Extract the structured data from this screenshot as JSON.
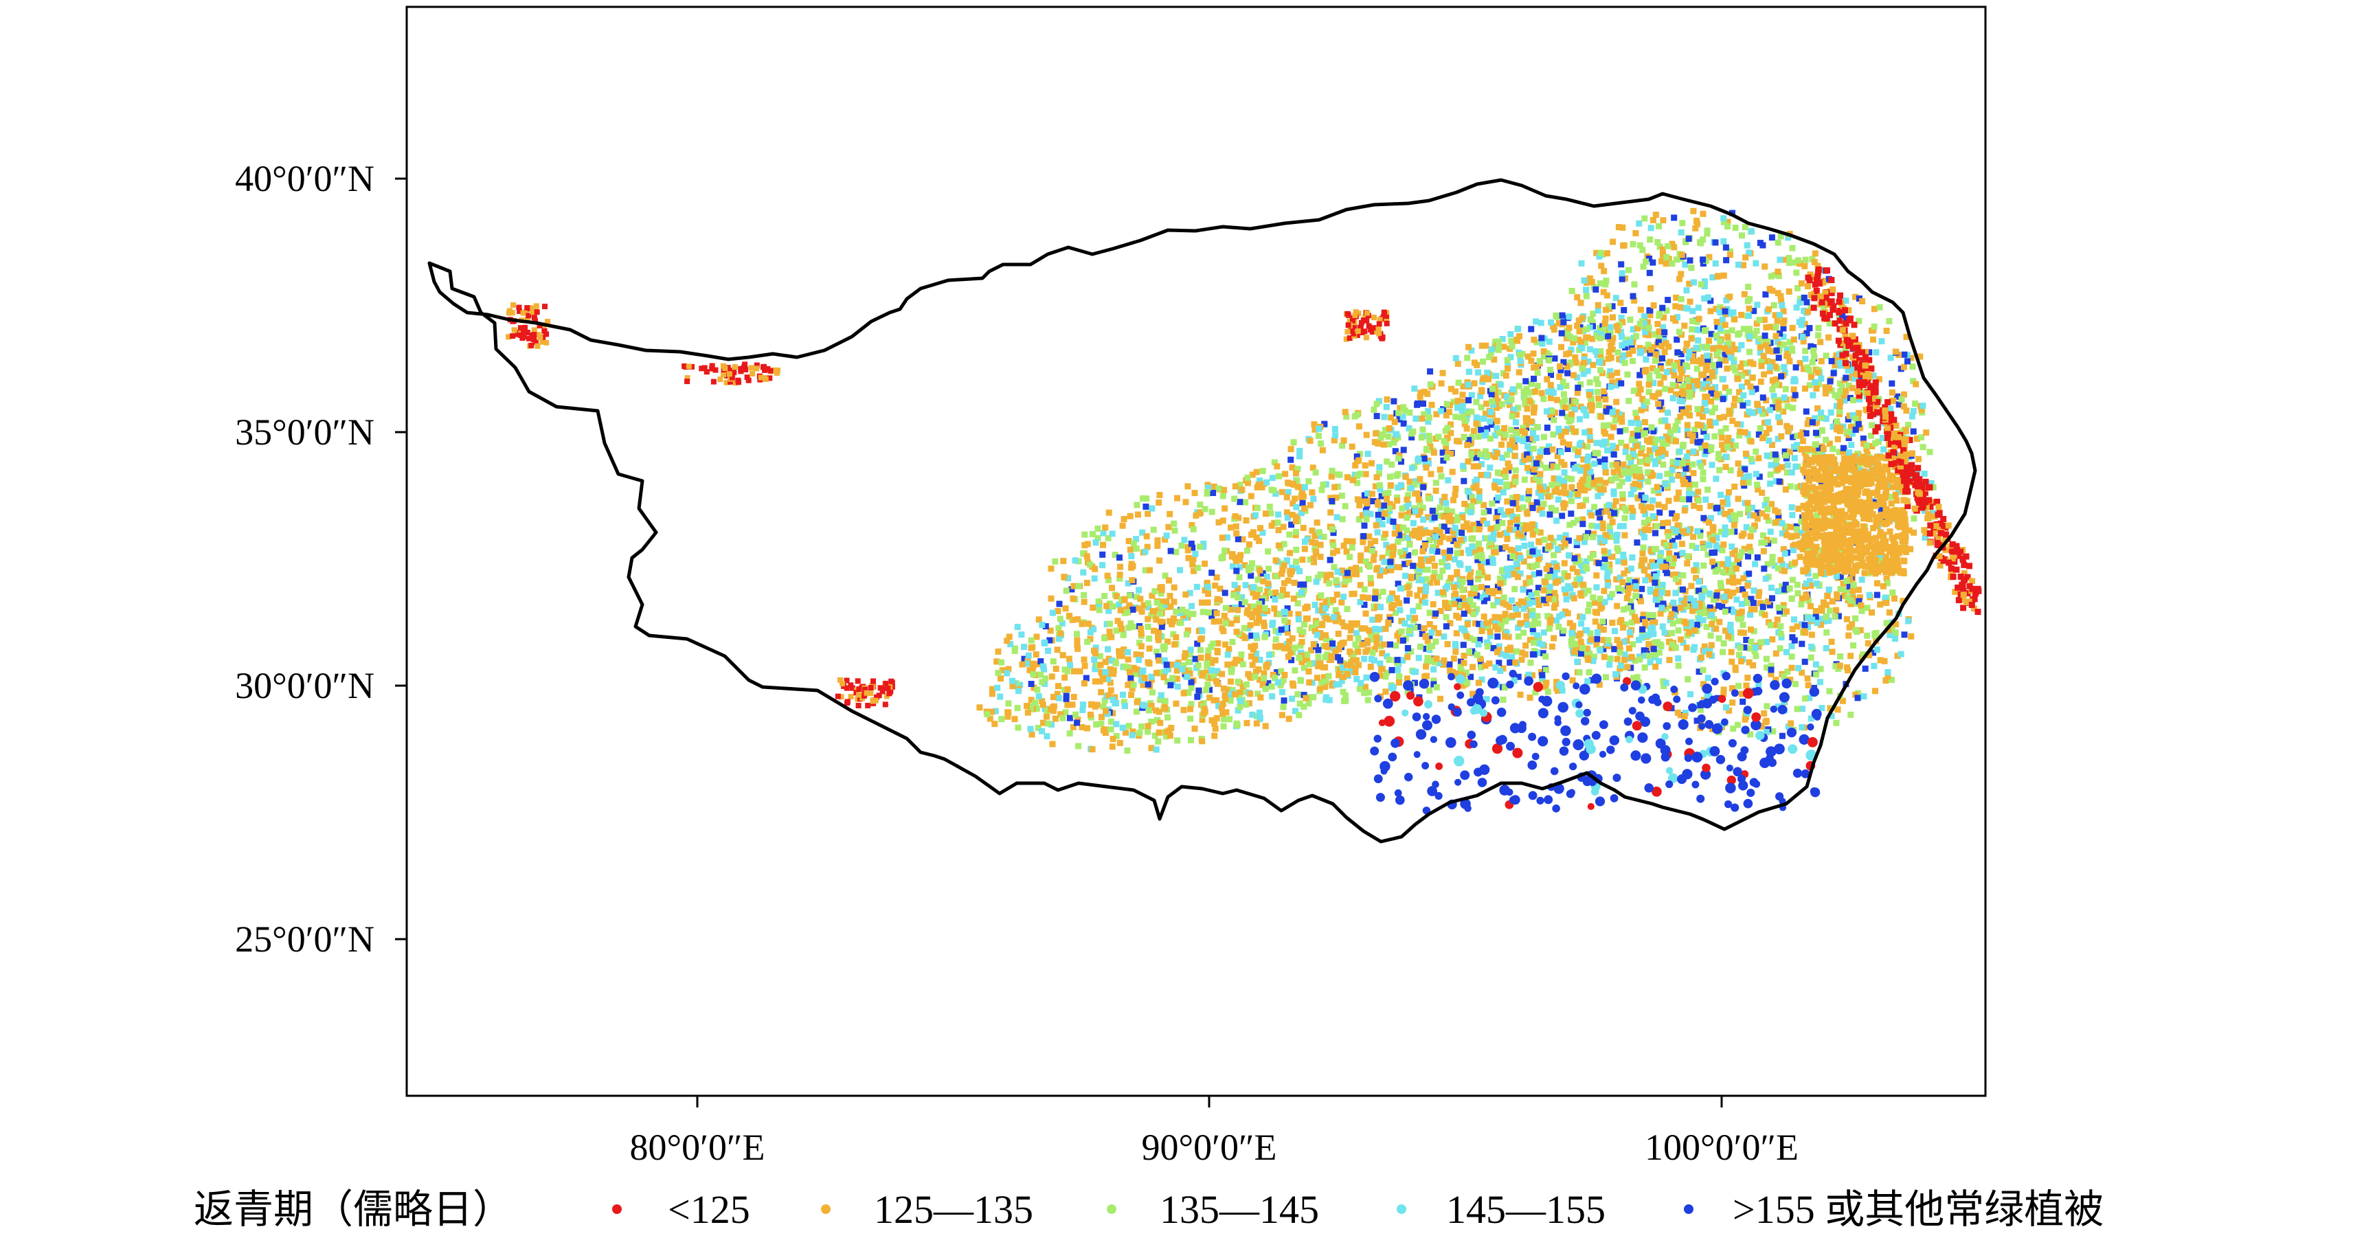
{
  "map": {
    "x_ticks": [
      "80°0′0″E",
      "90°0′0″E",
      "100°0′0″E"
    ],
    "y_ticks": [
      "40°0′0″N",
      "35°0′0″N",
      "30°0′0″N",
      "25°0′0″N"
    ],
    "extent": {
      "lon": [
        74.4,
        105.1
      ],
      "lat": [
        22.0,
        43.5
      ]
    }
  },
  "legend": {
    "title": "返青期（儒略日）",
    "items": [
      {
        "label": "<125",
        "color": "#e8191a"
      },
      {
        "label": "125—135",
        "color": "#f2b134"
      },
      {
        "label": "135—145",
        "color": "#a8ec6e"
      },
      {
        "label": "145—155",
        "color": "#6fe3ee"
      },
      {
        "label": ">155 或其他常绿植被",
        "color": "#1f3fe0"
      }
    ]
  }
}
